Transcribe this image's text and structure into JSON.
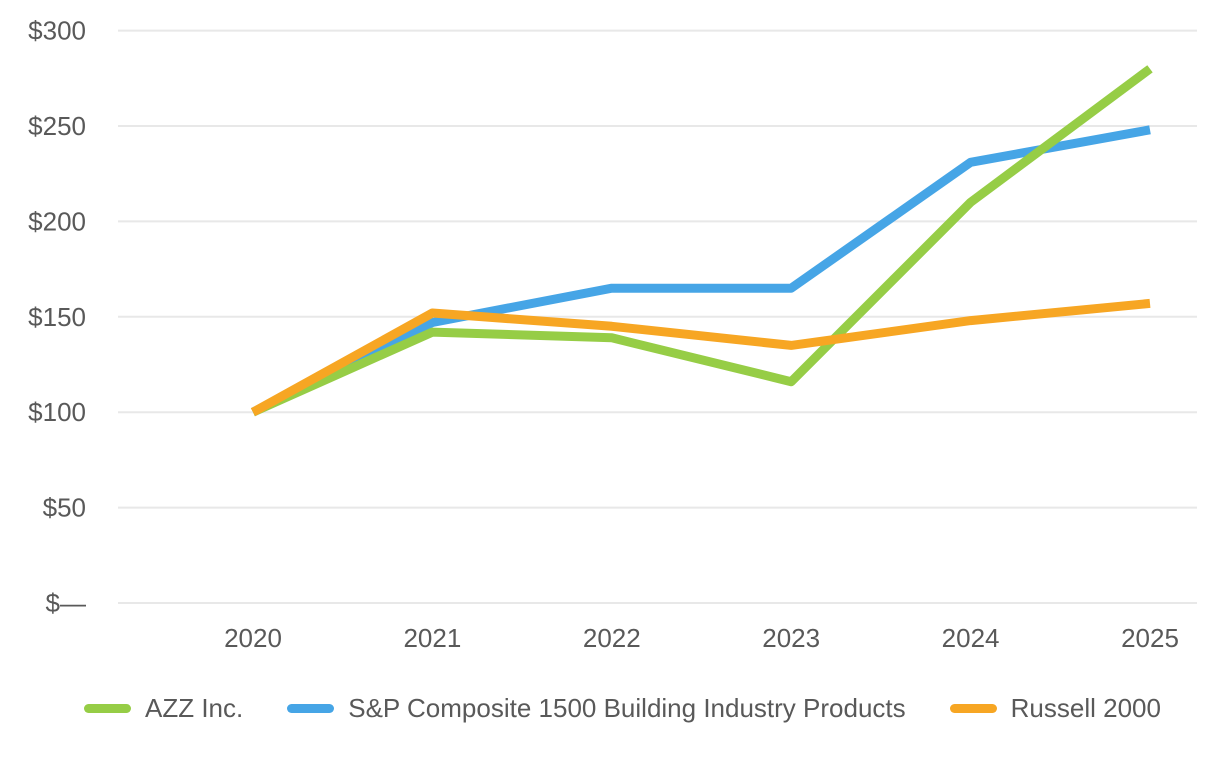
{
  "chart_data": {
    "type": "line",
    "title": "",
    "xlabel": "",
    "ylabel": "",
    "x_tick_labels": [
      "2020",
      "2021",
      "2022",
      "2023",
      "2024",
      "2025"
    ],
    "y_ticks": [
      0,
      50,
      100,
      150,
      200,
      250,
      300
    ],
    "y_tick_labels": [
      "$—",
      "$50",
      "$100",
      "$150",
      "$200",
      "$250",
      "$300"
    ],
    "ylim": [
      0,
      300
    ],
    "grid": "horizontal",
    "legend_position": "bottom",
    "series": [
      {
        "name": "AZZ Inc.",
        "color": "#96cd46",
        "values": [
          100,
          142,
          139,
          116,
          210,
          280
        ]
      },
      {
        "name": "S&P Composite 1500 Building Industry Products",
        "color": "#46a5e6",
        "values": [
          100,
          147,
          165,
          165,
          231,
          248
        ]
      },
      {
        "name": "Russell 2000",
        "color": "#f7a623",
        "values": [
          100,
          152,
          145,
          135,
          148,
          157
        ]
      }
    ]
  },
  "colors": {
    "axis_text": "#595959",
    "gridline": "#e8e8e8",
    "background": "#ffffff"
  }
}
